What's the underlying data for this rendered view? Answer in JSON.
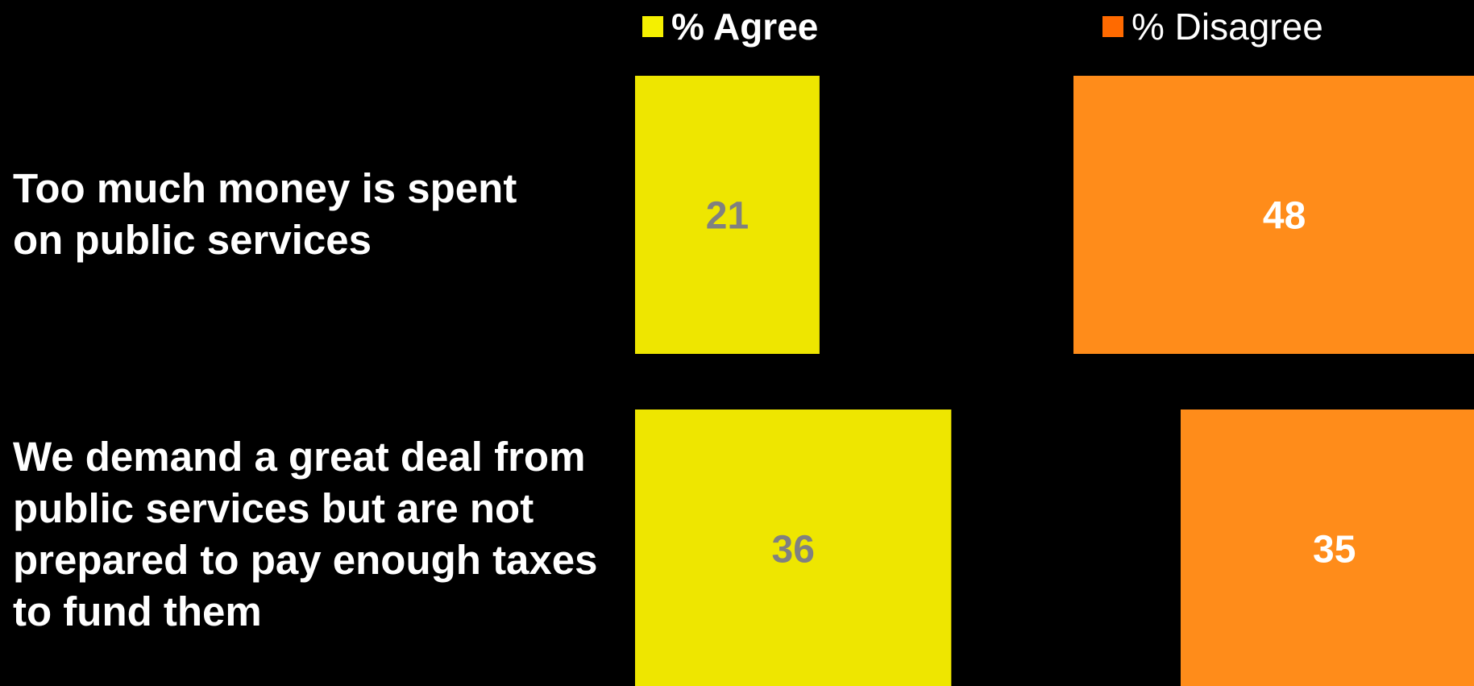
{
  "chart_data": {
    "type": "bar",
    "orientation": "horizontal",
    "stacked": false,
    "categories": [
      "Too much money is spent\non public services",
      "We demand a great deal from\npublic services but are not\nprepared to pay enough taxes\nto fund them"
    ],
    "series": [
      {
        "name": "% Agree",
        "values": [
          21,
          36
        ],
        "color": "#EEE600",
        "label_color": "#808080"
      },
      {
        "name": "% Disagree",
        "values": [
          48,
          35
        ],
        "color": "#FF8C1A",
        "label_color": "#FFFFFF"
      }
    ],
    "legend": {
      "placement": "top",
      "swatch_colors": [
        "#F5F000",
        "#FF6A00"
      ]
    },
    "grid": false,
    "background": "#000000"
  }
}
